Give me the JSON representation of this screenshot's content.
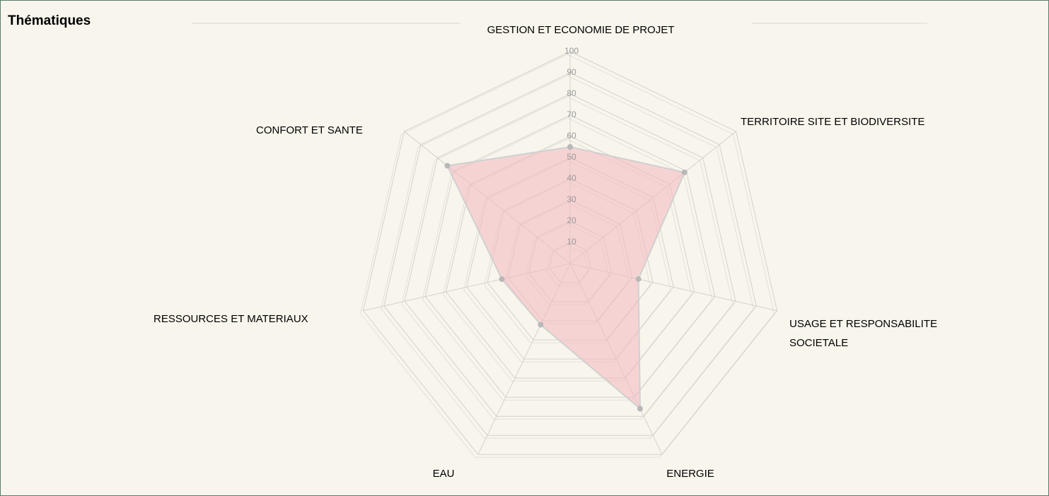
{
  "chart_data": {
    "type": "radar",
    "title": "Thématiques",
    "categories": [
      "GESTION ET ECONOMIE DE PROJET",
      "TERRITOIRE SITE ET BIODIVERSITE",
      "USAGE ET RESPONSABILITE SOCIETALE",
      "ENERGIE",
      "EAU",
      "RESSOURCES ET MATERIAUX",
      "CONFORT ET SANTE"
    ],
    "values": [
      55,
      69,
      33,
      76,
      32,
      33,
      74
    ],
    "color": "#f4b6c0",
    "ylim": [
      0,
      100
    ],
    "yticks": [
      10,
      20,
      30,
      40,
      50,
      60,
      70,
      80,
      90,
      100
    ],
    "grid": true
  }
}
